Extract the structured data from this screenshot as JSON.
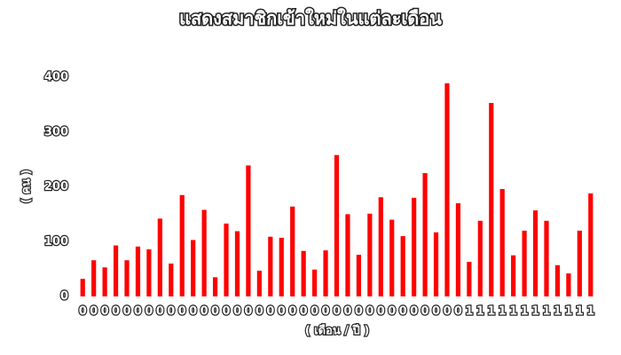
{
  "chart_data": {
    "type": "bar",
    "title": "แสดงสมาชิกเข้าใหม่ในแต่ละเดือน",
    "xlabel": "( เดือน / ปี )",
    "ylabel": "( คน )",
    "categories": [
      "0",
      "0",
      "0",
      "0",
      "0",
      "0",
      "0",
      "0",
      "0",
      "0",
      "0",
      "0",
      "0",
      "0",
      "0",
      "0",
      "0",
      "0",
      "0",
      "0",
      "0",
      "0",
      "0",
      "0",
      "0",
      "0",
      "0",
      "0",
      "0",
      "0",
      "0",
      "0",
      "0",
      "0",
      "0",
      "1",
      "1",
      "1",
      "1",
      "1",
      "1",
      "1",
      "1",
      "1",
      "1",
      "1",
      "1"
    ],
    "values": [
      32,
      66,
      53,
      93,
      66,
      91,
      86,
      142,
      60,
      185,
      103,
      158,
      35,
      133,
      119,
      239,
      47,
      109,
      107,
      164,
      83,
      49,
      84,
      258,
      150,
      76,
      151,
      181,
      140,
      110,
      180,
      225,
      117,
      389,
      170,
      63,
      138,
      353,
      196,
      75,
      120,
      157,
      138,
      57,
      42,
      120,
      188
    ],
    "color": "#ff0000",
    "ylim": [
      0,
      400
    ],
    "yticks": [
      0,
      100,
      200,
      300,
      400
    ],
    "grid": false
  }
}
